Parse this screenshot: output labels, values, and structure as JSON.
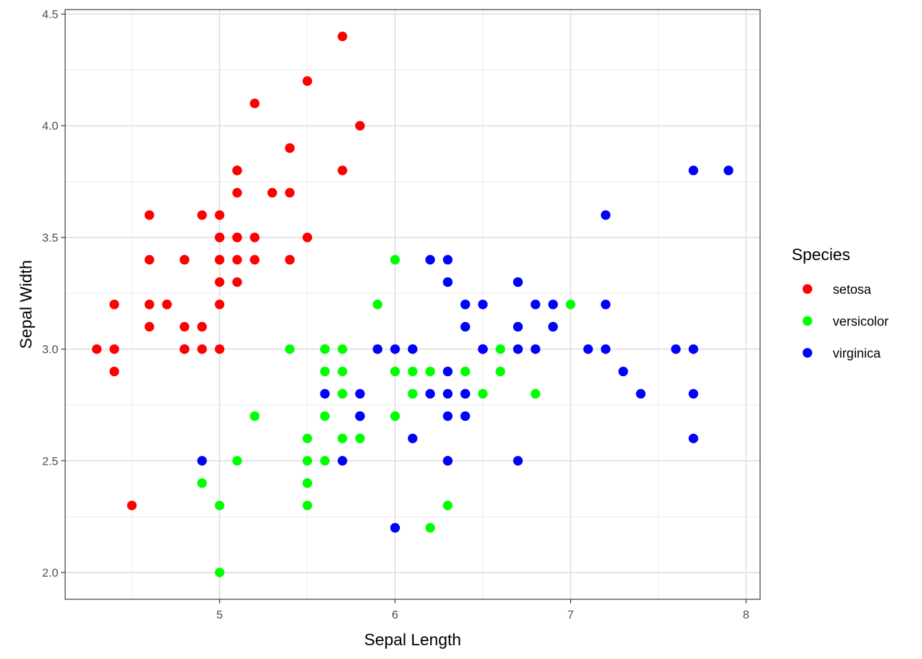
{
  "chart_data": {
    "type": "scatter",
    "xlabel": "Sepal Length",
    "ylabel": "Sepal Width",
    "xlim": [
      4.12,
      8.08
    ],
    "ylim": [
      1.88,
      4.52
    ],
    "x_ticks": [
      5,
      6,
      7,
      8
    ],
    "x_tick_labels": [
      "5",
      "6",
      "7",
      "8"
    ],
    "y_ticks": [
      2.0,
      2.5,
      3.0,
      3.5,
      4.0,
      4.5
    ],
    "y_tick_labels": [
      "2.0",
      "2.5",
      "3.0",
      "3.5",
      "4.0",
      "4.5"
    ],
    "grid": true,
    "legend": {
      "title": "Species",
      "position": "right"
    },
    "series": [
      {
        "name": "setosa",
        "color": "#ff0000",
        "points": [
          [
            5.1,
            3.5
          ],
          [
            4.9,
            3.0
          ],
          [
            4.7,
            3.2
          ],
          [
            4.6,
            3.1
          ],
          [
            5.0,
            3.6
          ],
          [
            5.4,
            3.9
          ],
          [
            4.6,
            3.4
          ],
          [
            5.0,
            3.4
          ],
          [
            4.4,
            2.9
          ],
          [
            4.9,
            3.1
          ],
          [
            5.4,
            3.7
          ],
          [
            4.8,
            3.4
          ],
          [
            4.8,
            3.0
          ],
          [
            4.3,
            3.0
          ],
          [
            5.8,
            4.0
          ],
          [
            5.7,
            4.4
          ],
          [
            5.4,
            3.9
          ],
          [
            5.1,
            3.5
          ],
          [
            5.7,
            3.8
          ],
          [
            5.1,
            3.8
          ],
          [
            5.4,
            3.4
          ],
          [
            5.1,
            3.7
          ],
          [
            4.6,
            3.6
          ],
          [
            5.1,
            3.3
          ],
          [
            4.8,
            3.4
          ],
          [
            5.0,
            3.0
          ],
          [
            5.0,
            3.4
          ],
          [
            5.2,
            3.5
          ],
          [
            5.2,
            3.4
          ],
          [
            4.7,
            3.2
          ],
          [
            4.8,
            3.1
          ],
          [
            5.4,
            3.4
          ],
          [
            5.2,
            4.1
          ],
          [
            5.5,
            4.2
          ],
          [
            4.9,
            3.1
          ],
          [
            5.0,
            3.2
          ],
          [
            5.5,
            3.5
          ],
          [
            4.9,
            3.6
          ],
          [
            4.4,
            3.0
          ],
          [
            5.1,
            3.4
          ],
          [
            5.0,
            3.5
          ],
          [
            4.5,
            2.3
          ],
          [
            4.4,
            3.2
          ],
          [
            5.0,
            3.5
          ],
          [
            5.1,
            3.8
          ],
          [
            4.8,
            3.0
          ],
          [
            5.1,
            3.8
          ],
          [
            4.6,
            3.2
          ],
          [
            5.3,
            3.7
          ],
          [
            5.0,
            3.3
          ]
        ]
      },
      {
        "name": "versicolor",
        "color": "#00ff00",
        "points": [
          [
            7.0,
            3.2
          ],
          [
            6.4,
            3.2
          ],
          [
            6.9,
            3.1
          ],
          [
            5.5,
            2.3
          ],
          [
            6.5,
            2.8
          ],
          [
            5.7,
            2.8
          ],
          [
            6.3,
            3.3
          ],
          [
            4.9,
            2.4
          ],
          [
            6.6,
            2.9
          ],
          [
            5.2,
            2.7
          ],
          [
            5.0,
            2.0
          ],
          [
            5.9,
            3.0
          ],
          [
            6.0,
            2.2
          ],
          [
            6.1,
            2.9
          ],
          [
            5.6,
            2.9
          ],
          [
            6.7,
            3.1
          ],
          [
            5.6,
            3.0
          ],
          [
            5.8,
            2.7
          ],
          [
            6.2,
            2.2
          ],
          [
            5.6,
            2.5
          ],
          [
            5.9,
            3.2
          ],
          [
            6.1,
            2.8
          ],
          [
            6.3,
            2.5
          ],
          [
            6.1,
            2.8
          ],
          [
            6.4,
            2.9
          ],
          [
            6.6,
            3.0
          ],
          [
            6.8,
            2.8
          ],
          [
            6.7,
            3.0
          ],
          [
            6.0,
            2.9
          ],
          [
            5.7,
            2.6
          ],
          [
            5.5,
            2.4
          ],
          [
            5.5,
            2.4
          ],
          [
            5.8,
            2.7
          ],
          [
            6.0,
            2.7
          ],
          [
            5.4,
            3.0
          ],
          [
            6.0,
            3.4
          ],
          [
            6.7,
            3.1
          ],
          [
            6.3,
            2.3
          ],
          [
            5.6,
            3.0
          ],
          [
            5.5,
            2.5
          ],
          [
            5.5,
            2.6
          ],
          [
            6.1,
            3.0
          ],
          [
            5.8,
            2.6
          ],
          [
            5.0,
            2.3
          ],
          [
            5.6,
            2.7
          ],
          [
            5.7,
            3.0
          ],
          [
            5.7,
            2.9
          ],
          [
            6.2,
            2.9
          ],
          [
            5.1,
            2.5
          ],
          [
            5.7,
            2.8
          ]
        ]
      },
      {
        "name": "virginica",
        "color": "#0000ff",
        "points": [
          [
            6.3,
            3.3
          ],
          [
            5.8,
            2.7
          ],
          [
            7.1,
            3.0
          ],
          [
            6.3,
            2.9
          ],
          [
            6.5,
            3.0
          ],
          [
            7.6,
            3.0
          ],
          [
            4.9,
            2.5
          ],
          [
            7.3,
            2.9
          ],
          [
            6.7,
            2.5
          ],
          [
            7.2,
            3.6
          ],
          [
            6.5,
            3.2
          ],
          [
            6.4,
            2.7
          ],
          [
            6.8,
            3.0
          ],
          [
            5.7,
            2.5
          ],
          [
            5.8,
            2.8
          ],
          [
            6.4,
            3.2
          ],
          [
            6.5,
            3.0
          ],
          [
            7.7,
            3.8
          ],
          [
            7.7,
            2.6
          ],
          [
            6.0,
            2.2
          ],
          [
            6.9,
            3.2
          ],
          [
            5.6,
            2.8
          ],
          [
            7.7,
            2.8
          ],
          [
            6.3,
            2.7
          ],
          [
            6.7,
            3.3
          ],
          [
            7.2,
            3.2
          ],
          [
            6.2,
            2.8
          ],
          [
            6.1,
            3.0
          ],
          [
            6.4,
            2.8
          ],
          [
            7.2,
            3.0
          ],
          [
            7.4,
            2.8
          ],
          [
            7.9,
            3.8
          ],
          [
            6.4,
            2.8
          ],
          [
            6.3,
            2.8
          ],
          [
            6.1,
            2.6
          ],
          [
            7.7,
            3.0
          ],
          [
            6.3,
            3.4
          ],
          [
            6.4,
            3.1
          ],
          [
            6.0,
            3.0
          ],
          [
            6.9,
            3.1
          ],
          [
            6.7,
            3.1
          ],
          [
            6.9,
            3.1
          ],
          [
            5.8,
            2.7
          ],
          [
            6.8,
            3.2
          ],
          [
            6.7,
            3.3
          ],
          [
            6.7,
            3.0
          ],
          [
            6.3,
            2.5
          ],
          [
            6.5,
            3.0
          ],
          [
            6.2,
            3.4
          ],
          [
            5.9,
            3.0
          ]
        ]
      }
    ]
  }
}
